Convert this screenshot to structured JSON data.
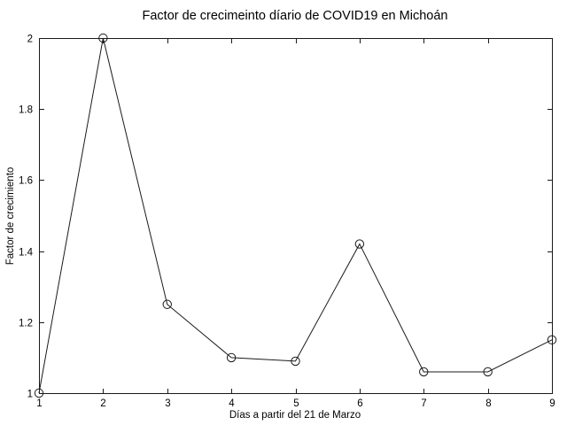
{
  "chart_data": {
    "type": "line",
    "title": "Factor de crecimeinto díario de COVID19 en Michoán",
    "xlabel": "Días a partir del 21 de Marzo",
    "ylabel": "Factor de crecimiento",
    "x": [
      1,
      2,
      3,
      4,
      5,
      6,
      7,
      8,
      9
    ],
    "y": [
      1.0,
      2.0,
      1.25,
      1.1,
      1.09,
      1.42,
      1.06,
      1.06,
      1.15
    ],
    "xlim": [
      1,
      9
    ],
    "ylim": [
      1,
      2
    ],
    "xticks": [
      1,
      2,
      3,
      4,
      5,
      6,
      7,
      8,
      9
    ],
    "xtick_labels": [
      "1",
      "2",
      "3",
      "4",
      "5",
      "6",
      "7",
      "8",
      "9"
    ],
    "yticks": [
      1,
      1.2,
      1.4,
      1.6,
      1.8,
      2
    ],
    "ytick_labels": [
      "1",
      "1.2",
      "1.4",
      "1.6",
      "1.8",
      "2"
    ],
    "marker": "open-circle",
    "line_color": "#1a1a1a",
    "axis_color": "#1a1a1a",
    "text_color": "#000000",
    "background_color": "#ffffff",
    "grid": false,
    "legend": "none"
  }
}
